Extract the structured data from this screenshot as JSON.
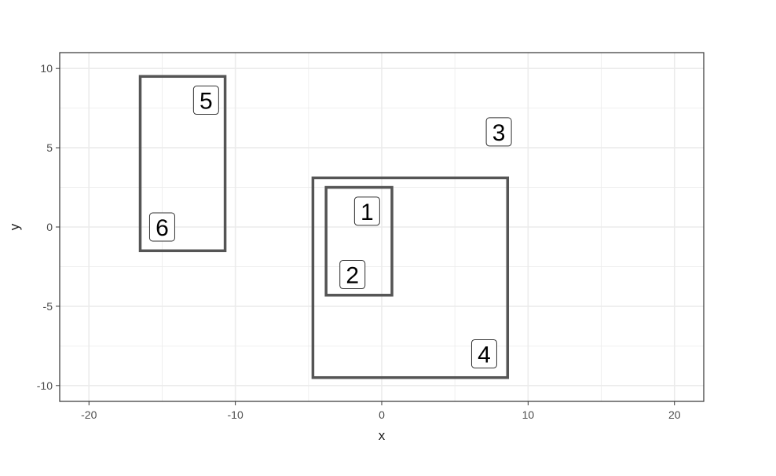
{
  "chart_data": {
    "type": "scatter",
    "title": "",
    "xlabel": "x",
    "ylabel": "y",
    "xlim": [
      -22,
      22
    ],
    "ylim": [
      -11,
      11
    ],
    "x_ticks": [
      -20,
      -10,
      0,
      10,
      20
    ],
    "y_ticks": [
      10,
      5,
      0,
      -5,
      -10
    ],
    "grid": true,
    "points": [
      {
        "label": "1",
        "x": -1.0,
        "y": 1.0
      },
      {
        "label": "2",
        "x": -2.0,
        "y": -3.0
      },
      {
        "label": "3",
        "x": 8.0,
        "y": 6.0
      },
      {
        "label": "4",
        "x": 7.0,
        "y": -8.0
      },
      {
        "label": "5",
        "x": -12.0,
        "y": 8.0
      },
      {
        "label": "6",
        "x": -15.0,
        "y": 0.0
      }
    ],
    "rectangles": [
      {
        "name": "box-a",
        "xmin": -16.5,
        "xmax": -10.7,
        "ymin": -1.5,
        "ymax": 9.5
      },
      {
        "name": "box-b",
        "xmin": -4.7,
        "xmax": 8.6,
        "ymin": -9.5,
        "ymax": 3.1
      },
      {
        "name": "box-c",
        "xmin": -3.8,
        "xmax": 0.7,
        "ymin": -4.3,
        "ymax": 2.5
      }
    ],
    "colors": {
      "panel_border": "#333333",
      "grid": "#ebebeb",
      "rect": "#555555",
      "label_border": "#333333"
    }
  }
}
